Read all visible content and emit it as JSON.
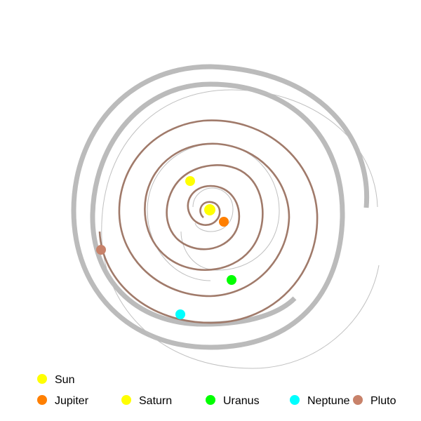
{
  "bodies": [
    {
      "id": "sun",
      "name": "Sun",
      "color": "#ffff00"
    },
    {
      "id": "jupiter",
      "name": "Jupiter",
      "color": "#ff7f00"
    },
    {
      "id": "saturn",
      "name": "Saturn",
      "color": "#ffff00"
    },
    {
      "id": "uranus",
      "name": "Uranus",
      "color": "#00ff00"
    },
    {
      "id": "neptune",
      "name": "Neptune",
      "color": "#00ffff"
    },
    {
      "id": "pluto",
      "name": "Pluto",
      "color": "#c8826a"
    }
  ],
  "path_colors": {
    "gray_band": "#bbbbbb",
    "thin_gray": "#c0c0c0",
    "brown": "#a07a6a"
  }
}
